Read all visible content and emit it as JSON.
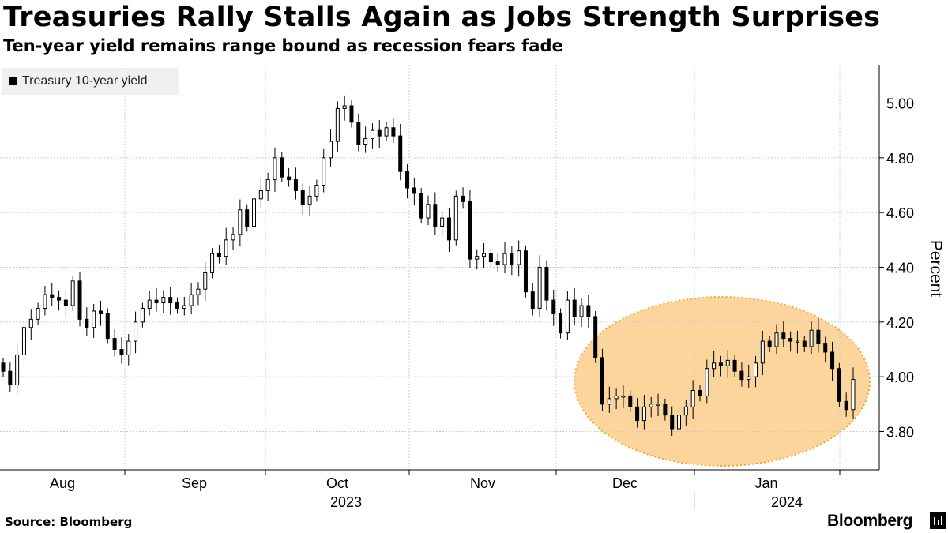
{
  "header": {
    "title": "Treasuries Rally Stalls Again as Jobs Strength Surprises",
    "subtitle": "Ten-year yield remains range bound as recession fears fade"
  },
  "footer": {
    "source": "Source: Bloomberg",
    "brand": "Bloomberg"
  },
  "colors": {
    "candle": "#000000",
    "grid": "#cccccc",
    "highlight_fill": "#fbd59b",
    "highlight_stroke": "#f0a830"
  },
  "chart_data": {
    "type": "candlestick",
    "title": "Treasuries Rally Stalls Again as Jobs Strength Surprises",
    "subtitle": "Ten-year yield remains range bound as recession fears fade",
    "ylabel": "Percent",
    "ylim": [
      3.66,
      5.14
    ],
    "yticks": [
      3.8,
      4.0,
      4.2,
      4.4,
      4.6,
      4.8,
      5.0
    ],
    "ytick_labels": [
      "3.80",
      "4.00",
      "4.20",
      "4.40",
      "4.60",
      "4.80",
      "5.00"
    ],
    "grid": true,
    "legend": [
      {
        "name": "Treasury 10-year yield",
        "position": "top-left"
      }
    ],
    "x_months": [
      "Aug",
      "Sep",
      "Oct",
      "Nov",
      "Dec",
      "Jan"
    ],
    "x_years": [
      "2023",
      "2024"
    ],
    "date_range": [
      "2023-07-24",
      "2024-01-12"
    ],
    "highlight": {
      "shape": "ellipse",
      "description": "recent range",
      "x_from": "2023-12-01",
      "x_to": "2024-01-12"
    },
    "series": [
      {
        "name": "Treasury 10-year yield",
        "daily_close": [
          4.02,
          3.97,
          4.08,
          4.18,
          4.21,
          4.25,
          4.3,
          4.29,
          4.28,
          4.26,
          4.35,
          4.21,
          4.18,
          4.24,
          4.23,
          4.14,
          4.1,
          4.08,
          4.13,
          4.2,
          4.25,
          4.28,
          4.27,
          4.29,
          4.27,
          4.25,
          4.26,
          4.3,
          4.32,
          4.38,
          4.45,
          4.44,
          4.5,
          4.52,
          4.61,
          4.55,
          4.65,
          4.68,
          4.72,
          4.8,
          4.73,
          4.72,
          4.68,
          4.63,
          4.66,
          4.7,
          4.8,
          4.86,
          4.98,
          4.99,
          4.93,
          4.85,
          4.87,
          4.9,
          4.88,
          4.91,
          4.88,
          4.75,
          4.69,
          4.67,
          4.58,
          4.63,
          4.55,
          4.58,
          4.5,
          4.66,
          4.64,
          4.43,
          4.44,
          4.45,
          4.42,
          4.41,
          4.45,
          4.41,
          4.46,
          4.31,
          4.25,
          4.4,
          4.28,
          4.23,
          4.16,
          4.28,
          4.22,
          4.26,
          4.22,
          4.07,
          3.9,
          3.92,
          3.93,
          3.93,
          3.89,
          3.84,
          3.89,
          3.9,
          3.9,
          3.86,
          3.81,
          3.86,
          3.89,
          3.95,
          3.93,
          4.03,
          4.05,
          4.04,
          4.06,
          4.02,
          3.99,
          4.0,
          4.05,
          4.13,
          4.11,
          4.16,
          4.14,
          4.13,
          4.13,
          4.11,
          4.17,
          4.12,
          4.09,
          4.03,
          3.91,
          3.88,
          3.99
        ]
      }
    ]
  }
}
